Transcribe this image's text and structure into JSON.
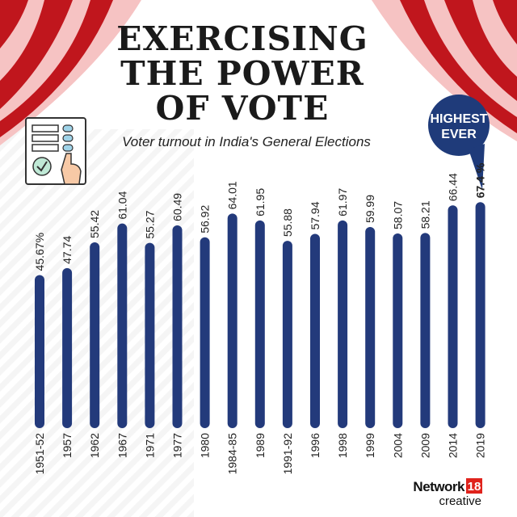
{
  "title_lines": [
    "EXERCISING",
    "THE POWER",
    "OF VOTE"
  ],
  "subtitle": "Voter turnout in India's General Elections",
  "badge": {
    "lines": [
      "HIGHEST",
      "EVER"
    ],
    "color": "#1f3b7a"
  },
  "logo": {
    "brand": "Network",
    "number": "18",
    "sub": "creative",
    "number_color": "#e0231c"
  },
  "colors": {
    "bar": "#233a7b",
    "curtain_dark": "#c0161d",
    "curtain_light": "#f6c3c3"
  },
  "icon": "voting-machine-hand-icon",
  "chart_data": {
    "type": "bar",
    "orientation": "vertical",
    "title": "EXERCISING THE POWER OF VOTE",
    "subtitle": "Voter turnout in India's General Elections",
    "categories": [
      "1951-52",
      "1957",
      "1962",
      "1967",
      "1971",
      "1977",
      "1980",
      "1984-85",
      "1989",
      "1991-92",
      "1996",
      "1998",
      "1999",
      "2004",
      "2009",
      "2014",
      "2019"
    ],
    "values": [
      45.67,
      47.74,
      55.42,
      61.04,
      55.27,
      60.49,
      56.92,
      64.01,
      61.95,
      55.88,
      57.94,
      61.97,
      59.99,
      58.07,
      58.21,
      66.44,
      67.4
    ],
    "data_labels": [
      "45.67%",
      "47.74",
      "55.42",
      "61.04",
      "55.27",
      "60.49",
      "56.92",
      "64.01",
      "61.95",
      "55.88",
      "57.94",
      "61.97",
      "59.99",
      "58.07",
      "58.21",
      "66.44",
      "67.4 %"
    ],
    "highlight_index": 16,
    "ylim": [
      0,
      70
    ],
    "grid": false,
    "xlabel": "",
    "ylabel": ""
  }
}
